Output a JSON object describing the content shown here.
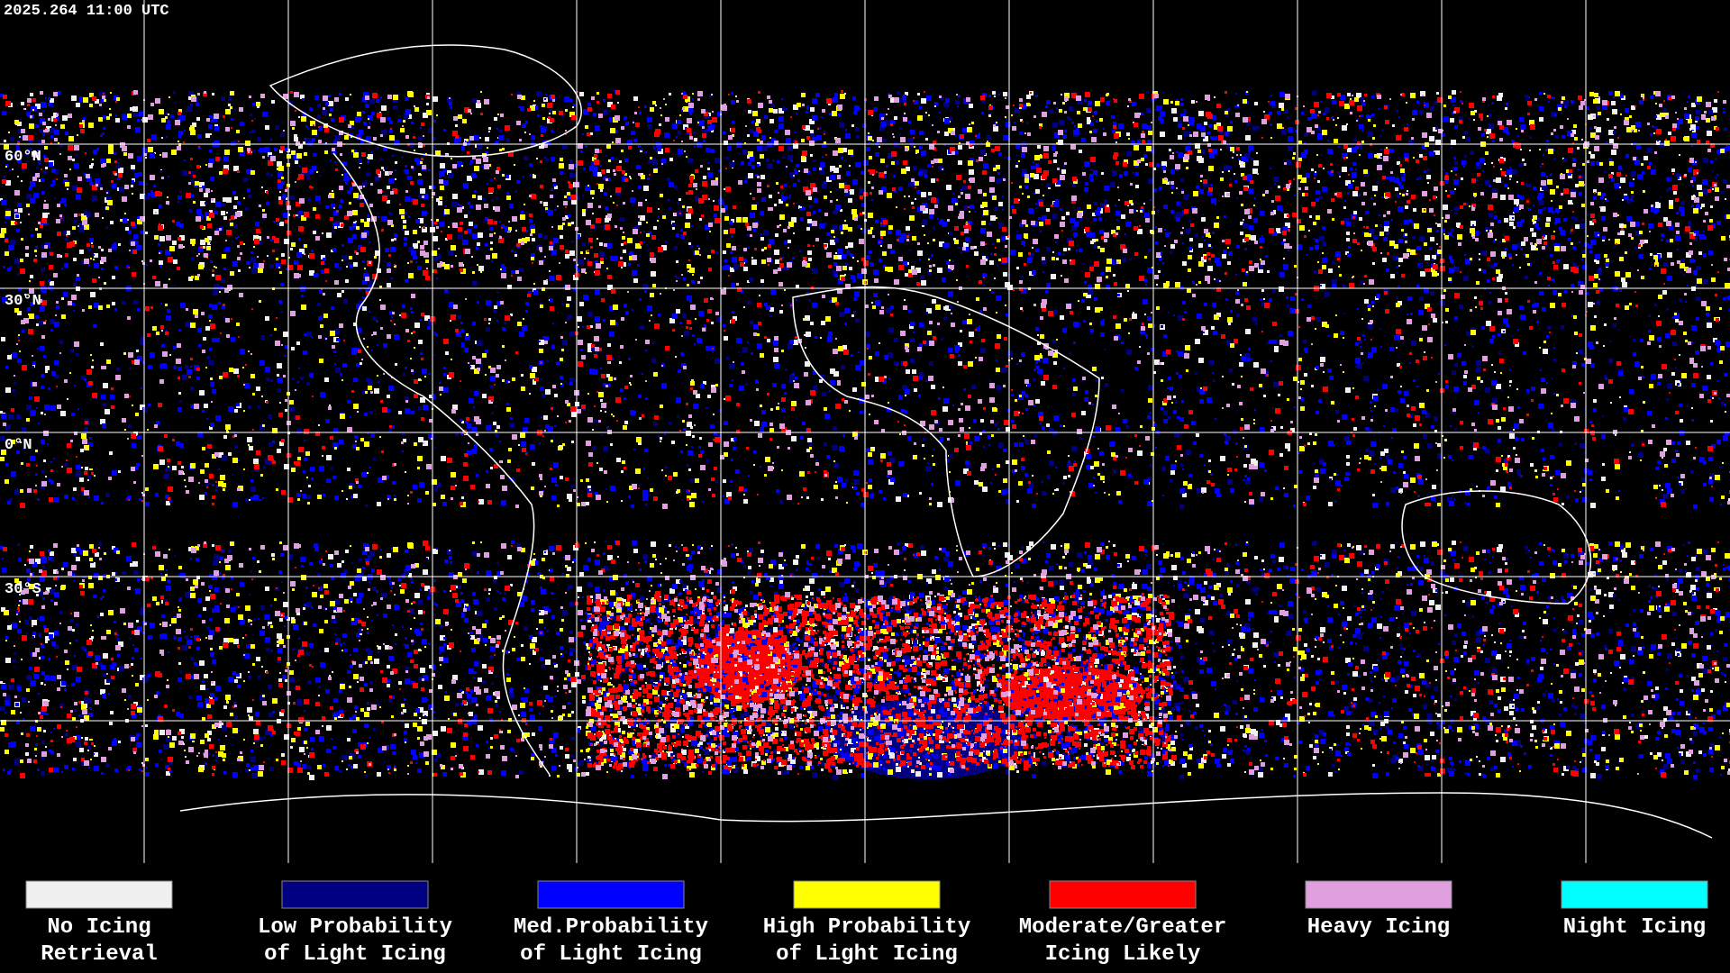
{
  "header": {
    "title": "2025.264 11:00 UTC"
  },
  "latitude_labels": [
    "60°N",
    "30°N",
    "0°N",
    "30°S"
  ],
  "legend": [
    {
      "lines": [
        "No Icing",
        "Retrieval"
      ],
      "color": "#f0f0f0"
    },
    {
      "lines": [
        "Low Probability",
        "of Light Icing"
      ],
      "color": "#000080"
    },
    {
      "lines": [
        "Med.Probability",
        "of Light Icing"
      ],
      "color": "#0000ff"
    },
    {
      "lines": [
        "High Probability",
        "of Light Icing"
      ],
      "color": "#ffff00"
    },
    {
      "lines": [
        "Moderate/Greater",
        "Icing Likely"
      ],
      "color": "#ff0000"
    },
    {
      "lines": [
        "Heavy Icing"
      ],
      "color": "#e0a0e0"
    },
    {
      "lines": [
        "Night Icing"
      ],
      "color": "#00ffff"
    }
  ]
}
